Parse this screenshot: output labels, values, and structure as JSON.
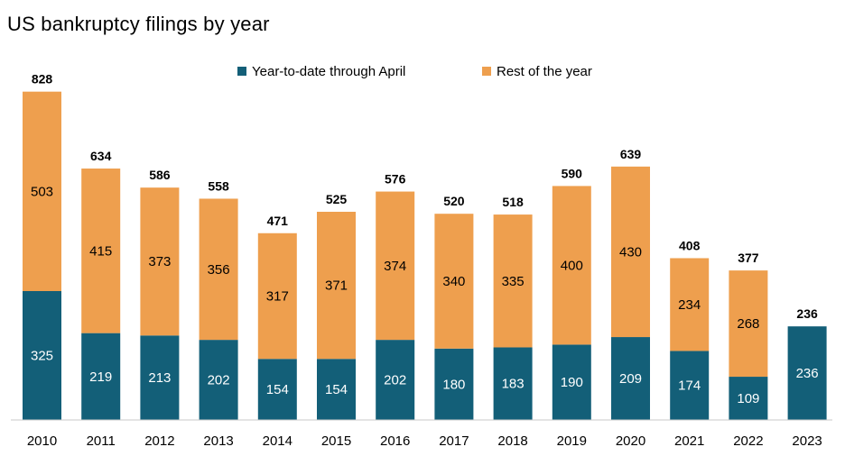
{
  "chart_data": {
    "type": "bar",
    "stacked": true,
    "title": "US bankruptcy filings by year",
    "categories": [
      "2010",
      "2011",
      "2012",
      "2013",
      "2014",
      "2015",
      "2016",
      "2017",
      "2018",
      "2019",
      "2020",
      "2021",
      "2022",
      "2023"
    ],
    "series": [
      {
        "name": "Year-to-date through April",
        "color": "#135f78",
        "values": [
          325,
          219,
          213,
          202,
          154,
          154,
          202,
          180,
          183,
          190,
          209,
          174,
          109,
          236
        ]
      },
      {
        "name": "Rest of the year",
        "color": "#ee9f4e",
        "values": [
          503,
          415,
          373,
          356,
          317,
          371,
          374,
          340,
          335,
          400,
          430,
          234,
          268,
          null
        ]
      }
    ],
    "totals": [
      828,
      634,
      586,
      558,
      471,
      525,
      576,
      520,
      518,
      590,
      639,
      408,
      377,
      236
    ],
    "legend_position": "top-center",
    "grid": false
  }
}
